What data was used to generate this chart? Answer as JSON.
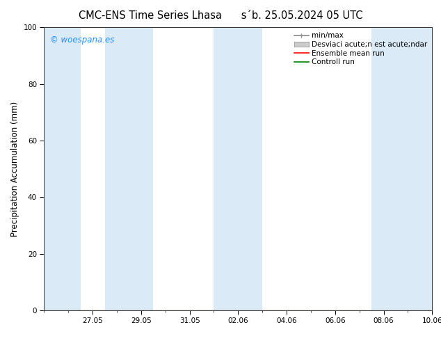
{
  "title_left": "CMC-ENS Time Series Lhasa",
  "title_right": "s´b. 25.05.2024 05 UTC",
  "ylabel": "Precipitation Accumulation (mm)",
  "ylim": [
    0,
    100
  ],
  "yticks": [
    0,
    20,
    40,
    60,
    80,
    100
  ],
  "xlim": [
    0,
    16
  ],
  "x_tick_positions": [
    2,
    4,
    6,
    8,
    10,
    12,
    14,
    16
  ],
  "x_tick_labels": [
    "27.05",
    "29.05",
    "31.05",
    "02.06",
    "04.06",
    "06.06",
    "08.06",
    "10.06"
  ],
  "shaded_bands": [
    [
      0.0,
      1.5
    ],
    [
      2.5,
      4.5
    ],
    [
      7.0,
      9.0
    ],
    [
      13.5,
      16.0
    ]
  ],
  "band_color": "#daeaf7",
  "bg_color": "#ffffff",
  "legend_labels": [
    "min/max",
    "Desviaci acute;n est acute;ndar",
    "Ensemble mean run",
    "Controll run"
  ],
  "watermark": "© woespana.es",
  "watermark_color": "#1E90FF",
  "tick_label_fontsize": 7.5,
  "title_fontsize": 10.5,
  "ylabel_fontsize": 8.5,
  "legend_fontsize": 7.5
}
